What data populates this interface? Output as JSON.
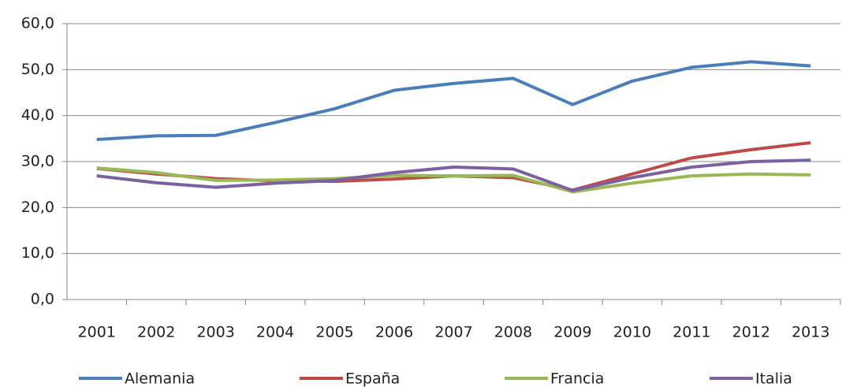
{
  "chart_data": {
    "type": "line",
    "categories": [
      "2001",
      "2002",
      "2003",
      "2004",
      "2005",
      "2006",
      "2007",
      "2008",
      "2009",
      "2010",
      "2011",
      "2012",
      "2013"
    ],
    "series": [
      {
        "name": "Alemania",
        "color": "#4a7ebb",
        "values": [
          34.8,
          35.6,
          35.7,
          38.5,
          41.5,
          45.5,
          47.0,
          48.1,
          42.4,
          47.5,
          50.5,
          51.7,
          50.8
        ]
      },
      {
        "name": "España",
        "color": "#be4b48",
        "values": [
          28.5,
          27.3,
          26.3,
          25.8,
          25.7,
          26.2,
          26.9,
          26.5,
          23.8,
          27.3,
          30.8,
          32.6,
          34.1
        ]
      },
      {
        "name": "Francia",
        "color": "#98b954",
        "values": [
          28.6,
          27.6,
          25.9,
          26.0,
          26.3,
          27.0,
          26.9,
          27.0,
          23.4,
          25.3,
          26.9,
          27.3,
          27.1
        ]
      },
      {
        "name": "Italia",
        "color": "#7d60a0",
        "values": [
          26.9,
          25.4,
          24.4,
          25.3,
          25.9,
          27.6,
          28.8,
          28.4,
          23.7,
          26.5,
          28.8,
          30.0,
          30.3
        ]
      }
    ],
    "ylim": [
      0,
      60
    ],
    "yticks": [
      {
        "value": 0,
        "label": "0,0"
      },
      {
        "value": 10,
        "label": "10,0"
      },
      {
        "value": 20,
        "label": "20,0"
      },
      {
        "value": 30,
        "label": "30,0"
      },
      {
        "value": 40,
        "label": "40,0"
      },
      {
        "value": 50,
        "label": "50,0"
      },
      {
        "value": 60,
        "label": "60,0"
      }
    ],
    "grid": true,
    "legend": "bottom"
  }
}
